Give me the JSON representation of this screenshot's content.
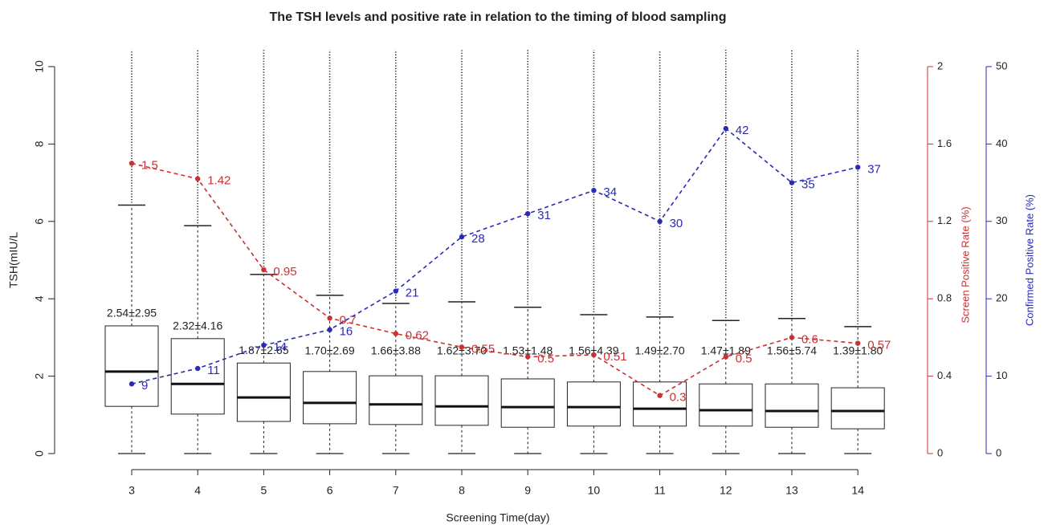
{
  "chart_data": {
    "type": "box",
    "title": "The TSH levels and positive rate in relation to the timing of blood sampling",
    "x_label": "Screening Time(day)",
    "y_label": "TSH(mIU/L",
    "y2_label": "Screen Positive Rate (%)",
    "y3_label": "Confirmed Positive Rate (%)",
    "categories": [
      "3",
      "4",
      "5",
      "6",
      "7",
      "8",
      "9",
      "10",
      "11",
      "12",
      "13",
      "14"
    ],
    "boxes": [
      {
        "whislo": 0,
        "q1": 1.22,
        "med": 2.12,
        "q3": 3.3,
        "whishi": 6.42
      },
      {
        "whislo": 0,
        "q1": 1.02,
        "med": 1.8,
        "q3": 2.97,
        "whishi": 5.89
      },
      {
        "whislo": 0,
        "q1": 0.83,
        "med": 1.45,
        "q3": 2.34,
        "whishi": 4.63
      },
      {
        "whislo": 0,
        "q1": 0.77,
        "med": 1.31,
        "q3": 2.12,
        "whishi": 4.09
      },
      {
        "whislo": 0,
        "q1": 0.75,
        "med": 1.27,
        "q3": 2.01,
        "whishi": 3.88
      },
      {
        "whislo": 0,
        "q1": 0.73,
        "med": 1.22,
        "q3": 2.01,
        "whishi": 3.92
      },
      {
        "whislo": 0,
        "q1": 0.68,
        "med": 1.2,
        "q3": 1.93,
        "whishi": 3.78
      },
      {
        "whislo": 0,
        "q1": 0.71,
        "med": 1.2,
        "q3": 1.85,
        "whishi": 3.59
      },
      {
        "whislo": 0,
        "q1": 0.71,
        "med": 1.16,
        "q3": 1.85,
        "whishi": 3.53
      },
      {
        "whislo": 0,
        "q1": 0.71,
        "med": 1.12,
        "q3": 1.8,
        "whishi": 3.44
      },
      {
        "whislo": 0,
        "q1": 0.68,
        "med": 1.1,
        "q3": 1.8,
        "whishi": 3.49
      },
      {
        "whislo": 0,
        "q1": 0.64,
        "med": 1.1,
        "q3": 1.7,
        "whishi": 3.28
      }
    ],
    "box_labels": [
      "2.54±2.95",
      "2.32±4.16",
      "1.87±2.65",
      "1.70±2.69",
      "1.66±3.88",
      "1.62±3.70",
      "1.53±1.48",
      "1.56±4.39",
      "1.49±2.70",
      "1.47±1.89",
      "1.56±5.74",
      "1.39±1.80"
    ],
    "ylim": [
      0,
      10
    ],
    "yticks": [
      0,
      2,
      4,
      6,
      8,
      10
    ],
    "y2lim": [
      0,
      2
    ],
    "y2ticks": [
      0,
      0.4,
      0.8,
      1.2,
      1.6,
      2
    ],
    "y3lim": [
      0,
      50
    ],
    "y3ticks": [
      0,
      10,
      20,
      30,
      40,
      50
    ],
    "series": [
      {
        "color": "#c83232",
        "axis": "y2",
        "values": [
          1.5,
          1.42,
          0.95,
          0.7,
          0.62,
          0.55,
          0.5,
          0.51,
          0.3,
          0.5,
          0.6,
          0.57
        ]
      },
      {
        "color": "#2a2ab8",
        "axis": "y3",
        "values": [
          9,
          11,
          14,
          16,
          21,
          28,
          31,
          34,
          30,
          42,
          35,
          37
        ]
      }
    ]
  }
}
